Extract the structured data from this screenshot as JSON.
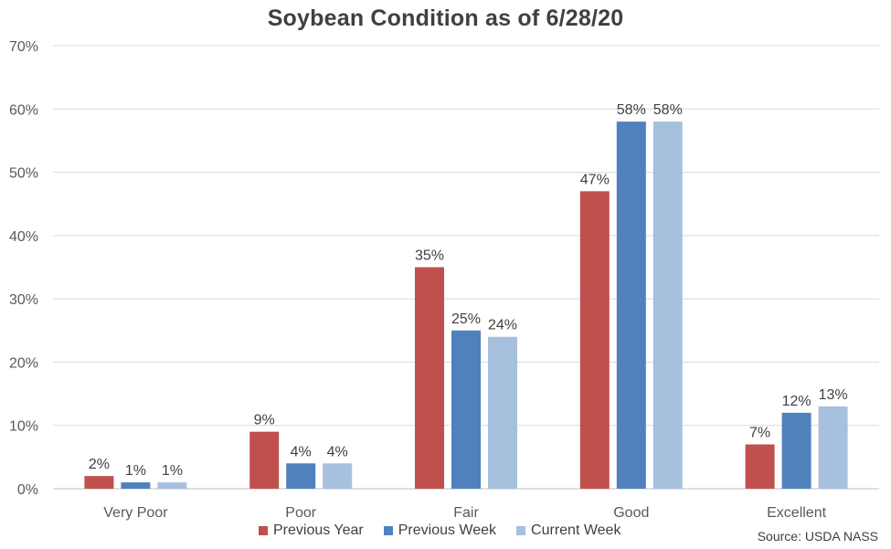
{
  "chart_data": {
    "type": "bar",
    "title": "Soybean Condition as of 6/28/20",
    "categories": [
      "Very Poor",
      "Poor",
      "Fair",
      "Good",
      "Excellent"
    ],
    "series": [
      {
        "name": "Previous Year",
        "values": [
          2,
          9,
          35,
          47,
          7
        ],
        "labels": [
          "2%",
          "9%",
          "35%",
          "47%",
          "7%"
        ],
        "color": "#C0504D"
      },
      {
        "name": "Previous Week",
        "values": [
          1,
          4,
          25,
          58,
          12
        ],
        "labels": [
          "1%",
          "4%",
          "25%",
          "58%",
          "12%"
        ],
        "color": "#4F81BD"
      },
      {
        "name": "Current Week",
        "values": [
          1,
          4,
          24,
          58,
          13
        ],
        "labels": [
          "1%",
          "4%",
          "24%",
          "58%",
          "13%"
        ],
        "color": "#A7C0DE"
      }
    ],
    "ylim": [
      0,
      70
    ],
    "yticks": [
      0,
      10,
      20,
      30,
      40,
      50,
      60,
      70
    ],
    "ytick_labels": [
      "0%",
      "10%",
      "20%",
      "30%",
      "40%",
      "50%",
      "60%",
      "70%"
    ],
    "grid": true,
    "legend_position": "bottom",
    "source": "Source: USDA NASS"
  },
  "colors": {
    "gridline": "#D9D9D9",
    "axis": "#BFBFBF"
  }
}
